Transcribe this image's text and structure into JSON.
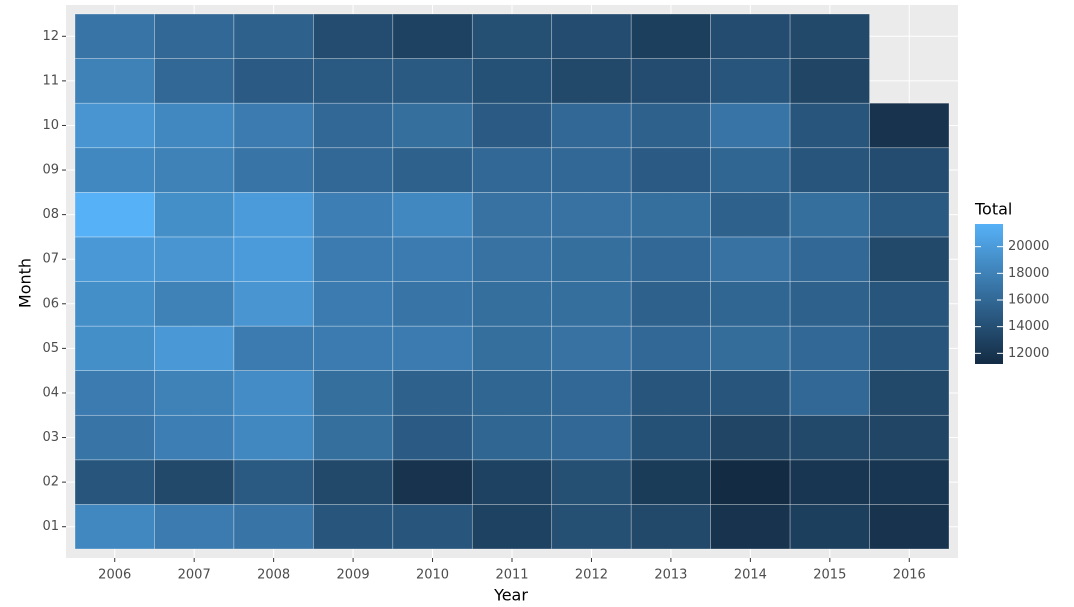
{
  "chart_data": {
    "type": "heatmap",
    "x_label": "Year",
    "y_label": "Month",
    "x": [
      "2006",
      "2007",
      "2008",
      "2009",
      "2010",
      "2011",
      "2012",
      "2013",
      "2014",
      "2015",
      "2016"
    ],
    "y": [
      "01",
      "02",
      "03",
      "04",
      "05",
      "06",
      "07",
      "08",
      "09",
      "10",
      "11",
      "12"
    ],
    "values": [
      [
        18500,
        17500,
        17000,
        14500,
        14500,
        13000,
        14000,
        13500,
        11800,
        12800,
        11800
      ],
      [
        14500,
        13500,
        14800,
        13500,
        11800,
        13000,
        14000,
        12500,
        11200,
        12000,
        12000
      ],
      [
        17000,
        17800,
        18500,
        16500,
        15000,
        15800,
        16000,
        14200,
        13200,
        13500,
        13200
      ],
      [
        17500,
        18000,
        18800,
        16500,
        15500,
        15800,
        16000,
        14500,
        14500,
        16000,
        13500
      ],
      [
        19000,
        19800,
        17500,
        17500,
        17500,
        16500,
        16800,
        16000,
        16300,
        16000,
        14500
      ],
      [
        19000,
        18000,
        19500,
        17500,
        17000,
        16500,
        16500,
        15500,
        15800,
        15500,
        14500
      ],
      [
        19800,
        19500,
        20000,
        17500,
        17500,
        16800,
        16500,
        16000,
        16800,
        16000,
        13500
      ],
      [
        21700,
        19000,
        20000,
        17800,
        18500,
        16800,
        16800,
        16500,
        15500,
        16500,
        14800
      ],
      [
        18500,
        18000,
        17000,
        16000,
        15500,
        16000,
        16000,
        15000,
        15800,
        14500,
        13800
      ],
      [
        19500,
        18500,
        17500,
        16000,
        16500,
        15000,
        16000,
        15500,
        17000,
        14500,
        11800
      ],
      [
        18000,
        16000,
        15000,
        14800,
        14800,
        14200,
        13500,
        13800,
        14500,
        13200,
        null
      ],
      [
        17000,
        16000,
        15500,
        13800,
        13000,
        14000,
        13800,
        12800,
        13800,
        13500,
        null
      ]
    ],
    "legend_title": "Total",
    "zlim": [
      11200,
      21700
    ],
    "colorbar_ticks": [
      12000,
      14000,
      16000,
      18000,
      20000
    ],
    "color_low": "#132B43",
    "color_high": "#56B1F7",
    "grid": true,
    "legend_position": "right"
  }
}
